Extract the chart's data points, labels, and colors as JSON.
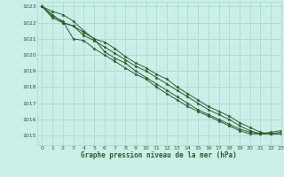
{
  "title": "Graphe pression niveau de la mer (hPa)",
  "background_color": "#cceee8",
  "grid_color": "#99ddcc",
  "line_color": "#2d5a2d",
  "xlim": [
    -0.5,
    23
  ],
  "ylim": [
    1014.4,
    1023.3
  ],
  "yticks": [
    1015,
    1016,
    1017,
    1018,
    1019,
    1020,
    1021,
    1022,
    1023
  ],
  "xticks": [
    0,
    1,
    2,
    3,
    4,
    5,
    6,
    7,
    8,
    9,
    10,
    11,
    12,
    13,
    14,
    15,
    16,
    17,
    18,
    19,
    20,
    21,
    22,
    23
  ],
  "series": [
    [
      1023.0,
      1022.7,
      1022.5,
      1022.1,
      1021.5,
      1021.0,
      1020.8,
      1020.4,
      1019.9,
      1019.5,
      1019.2,
      1018.8,
      1018.5,
      1018.0,
      1017.6,
      1017.2,
      1016.8,
      1016.5,
      1016.2,
      1015.8,
      1015.5,
      1015.2,
      1015.1,
      1015.1
    ],
    [
      1023.0,
      1022.5,
      1022.0,
      1021.8,
      1021.2,
      1020.9,
      1020.5,
      1020.1,
      1019.7,
      1019.3,
      1019.0,
      1018.6,
      1018.2,
      1017.8,
      1017.4,
      1017.0,
      1016.6,
      1016.3,
      1016.0,
      1015.6,
      1015.3,
      1015.1,
      1015.1,
      1015.2
    ],
    [
      1023.0,
      1022.4,
      1022.1,
      1021.0,
      1020.9,
      1020.4,
      1020.0,
      1019.6,
      1019.2,
      1018.8,
      1018.5,
      1018.0,
      1017.6,
      1017.2,
      1016.8,
      1016.5,
      1016.2,
      1015.9,
      1015.6,
      1015.3,
      1015.1,
      1015.1,
      1015.1,
      1015.1
    ],
    [
      1023.0,
      1022.3,
      1022.0,
      1021.8,
      1021.4,
      1021.0,
      1020.2,
      1019.8,
      1019.5,
      1019.0,
      1018.6,
      1018.2,
      1017.8,
      1017.4,
      1017.0,
      1016.6,
      1016.3,
      1016.0,
      1015.7,
      1015.4,
      1015.2,
      1015.1,
      1015.2,
      1015.3
    ]
  ]
}
